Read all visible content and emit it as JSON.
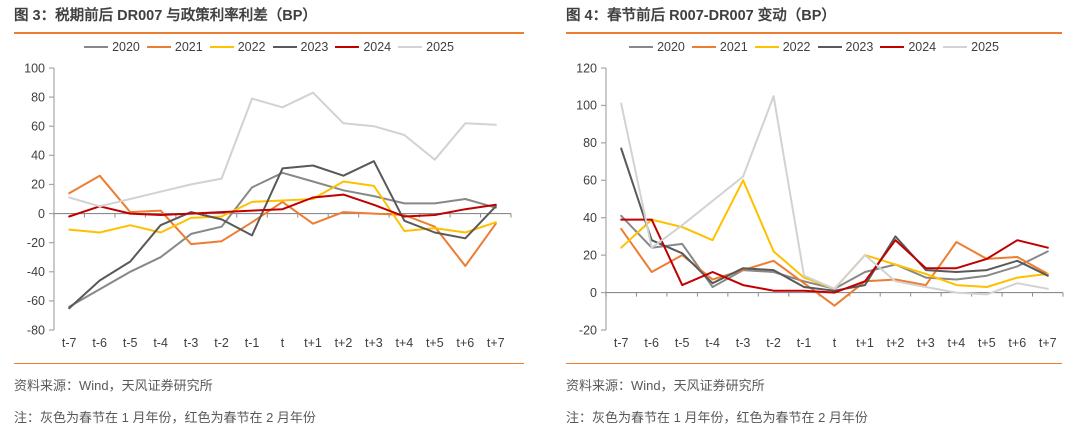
{
  "styles": {
    "accent_rule_color": "#ED7D31",
    "title_color": "#404040",
    "muted_text_color": "#595959",
    "axis_color": "#A6A6A6",
    "zero_line_color": "#8C8C8C",
    "label_color": "#404040"
  },
  "chart_data": [
    {
      "type": "line",
      "title": "图 3：税期前后 DR007 与政策利率利差（BP）",
      "source": "资料来源：Wind，天风证券研究所",
      "note": "注：灰色为春节在 1 月年份，红色为春节在 2 月年份",
      "categories": [
        "t-7",
        "t-6",
        "t-5",
        "t-4",
        "t-3",
        "t-2",
        "t-1",
        "t",
        "t+1",
        "t+2",
        "t+3",
        "t+4",
        "t+5",
        "t+6",
        "t+7"
      ],
      "ylim": [
        -80,
        100
      ],
      "ytick_step": 20,
      "grid": false,
      "legend_position": "top",
      "series": [
        {
          "name": "2020",
          "color": "#888888",
          "values": [
            -64,
            -52,
            -40,
            -30,
            -14,
            -9,
            18,
            28,
            22,
            16,
            12,
            7,
            7,
            10,
            4
          ]
        },
        {
          "name": "2021",
          "color": "#ED7D31",
          "values": [
            14,
            26,
            1,
            2,
            -21,
            -19,
            -6,
            8,
            -7,
            1,
            0,
            -1,
            -9,
            -36,
            -7
          ]
        },
        {
          "name": "2022",
          "color": "#FFC000",
          "values": [
            -11,
            -13,
            -8,
            -13,
            -3,
            -2,
            8,
            9,
            10,
            22,
            19,
            -12,
            -10,
            -13,
            -6
          ]
        },
        {
          "name": "2023",
          "color": "#595959",
          "values": [
            -65,
            -46,
            -33,
            -8,
            1,
            -4,
            -15,
            31,
            33,
            26,
            36,
            -5,
            -13,
            -17,
            5
          ]
        },
        {
          "name": "2024",
          "color": "#C00000",
          "values": [
            -2,
            5,
            0,
            -1,
            0,
            1,
            2,
            3,
            11,
            13,
            6,
            -2,
            -1,
            3,
            6
          ]
        },
        {
          "name": "2025",
          "color": "#D2D2D2",
          "values": [
            11,
            5,
            10,
            15,
            20,
            24,
            79,
            73,
            83,
            62,
            60,
            54,
            37,
            62,
            61
          ]
        }
      ]
    },
    {
      "type": "line",
      "title": "图 4：春节前后 R007-DR007 变动（BP）",
      "source": "资料来源：Wind，天风证券研究所",
      "note": "注：灰色为春节在 1 月年份，红色为春节在 2 月年份",
      "categories": [
        "t-7",
        "t-6",
        "t-5",
        "t-4",
        "t-3",
        "t-2",
        "t-1",
        "t",
        "t+1",
        "t+2",
        "t+3",
        "t+4",
        "t+5",
        "t+6",
        "t+7"
      ],
      "ylim": [
        -20,
        120
      ],
      "ytick_step": 20,
      "grid": false,
      "legend_position": "top",
      "series": [
        {
          "name": "2020",
          "color": "#888888",
          "values": [
            41,
            24,
            26,
            3,
            12,
            11,
            6,
            2,
            11,
            15,
            8,
            7,
            9,
            14,
            22
          ]
        },
        {
          "name": "2021",
          "color": "#ED7D31",
          "values": [
            34,
            11,
            20,
            7,
            12,
            17,
            5,
            -7,
            6,
            7,
            4,
            27,
            18,
            19,
            10
          ]
        },
        {
          "name": "2022",
          "color": "#FFC000",
          "values": [
            24,
            39,
            35,
            28,
            60,
            22,
            8,
            2,
            20,
            15,
            10,
            4,
            3,
            8,
            10
          ]
        },
        {
          "name": "2023",
          "color": "#595959",
          "values": [
            77,
            28,
            21,
            5,
            13,
            12,
            3,
            1,
            4,
            30,
            12,
            11,
            12,
            17,
            9
          ]
        },
        {
          "name": "2024",
          "color": "#C00000",
          "values": [
            39,
            39,
            4,
            11,
            4,
            1,
            1,
            0,
            6,
            28,
            13,
            13,
            18,
            28,
            24
          ]
        },
        {
          "name": "2025",
          "color": "#D2D2D2",
          "values": [
            101,
            24,
            36,
            49,
            62,
            105,
            9,
            2,
            20,
            6,
            3,
            0,
            -1,
            5,
            2
          ]
        }
      ]
    }
  ]
}
